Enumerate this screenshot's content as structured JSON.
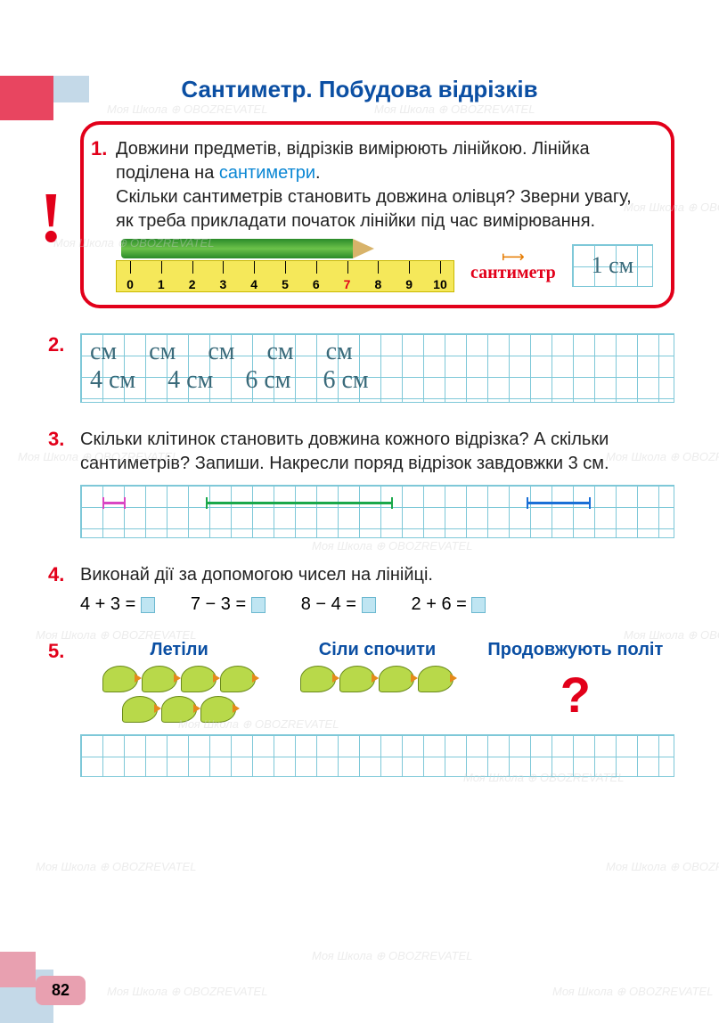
{
  "page": {
    "title": "Сантиметр. Побудова відрізків",
    "number": "82",
    "watermark": "Моя Школа ⊕ OBOZREVATEL"
  },
  "task1": {
    "num": "1.",
    "text_a": "Довжини предметів, відрізків вимірюють лінійкою. Лінійка поділена на ",
    "highlight": "сантиметри",
    "text_b": ".",
    "text_c": "Скільки сантиметрів становить довжина олівця? Зверни увагу, як треба прикладати початок лінійки під час вимірювання.",
    "cm_word": "сантиметр",
    "cm_script": "1 см",
    "ruler": {
      "marks": [
        "0",
        "1",
        "2",
        "3",
        "4",
        "5",
        "6",
        "7",
        "8",
        "9",
        "10"
      ],
      "highlight_index": 7
    },
    "colors": {
      "border": "#e2001a",
      "pencil": "#2a8a2a",
      "ruler_bg": "#f5e85a"
    }
  },
  "task2": {
    "num": "2.",
    "line1": [
      "см",
      "см",
      "см",
      "см",
      "см"
    ],
    "line2": [
      "4 см",
      "4 см",
      "6 см",
      "6 см"
    ]
  },
  "task3": {
    "num": "3.",
    "text": "Скільки клітинок становить довжина кожного відрізка? А скільки сантиметрів? Запиши. Накресли поряд відрізок завдовжки 3 см.",
    "segments": [
      {
        "color": "#d946c3",
        "cells": 1
      },
      {
        "color": "#1aa84a",
        "cells": 9
      },
      {
        "color": "#1a6fd6",
        "cells": 3
      }
    ]
  },
  "task4": {
    "num": "4.",
    "text": "Виконай дії за допомогою чисел на лінійці.",
    "equations": [
      "4 + 3 =",
      "7 − 3 =",
      "8 − 4 =",
      "2 + 6 ="
    ]
  },
  "task5": {
    "num": "5.",
    "cols": [
      {
        "title": "Летіли",
        "birds": 7
      },
      {
        "title": "Сіли спочити",
        "birds": 4
      },
      {
        "title": "Продовжують політ",
        "qmark": "?"
      }
    ]
  },
  "style": {
    "title_color": "#0b4fa3",
    "accent_red": "#e2001a",
    "grid_color": "#7ec8d8",
    "blank_bg": "#bfe5f2",
    "bird_color": "#b8d94a"
  }
}
